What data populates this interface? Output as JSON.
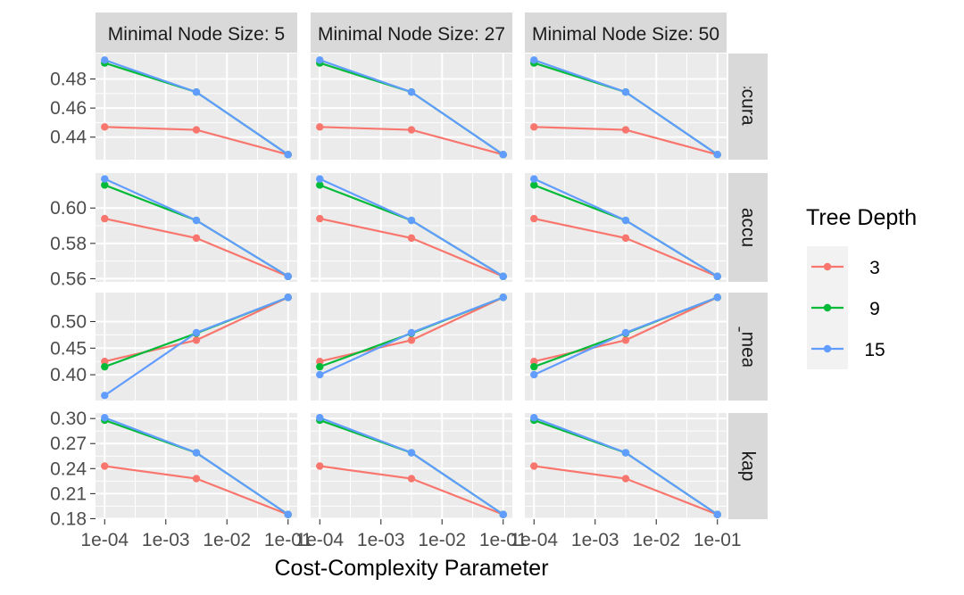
{
  "chart_data": {
    "type": "line",
    "x_scale": "log10",
    "x": [
      0.0001,
      0.00316,
      0.1
    ],
    "xlabel": "Cost-Complexity Parameter",
    "x_ticks": [
      0.0001,
      0.001,
      0.01,
      0.1
    ],
    "x_tick_labels": [
      "1e-04",
      "1e-03",
      "1e-02",
      "1e-01"
    ],
    "col_facets": [
      "Minimal Node Size: 5",
      "Minimal Node Size: 27",
      "Minimal Node Size: 50"
    ],
    "legend": {
      "title": "Tree Depth",
      "position": "right",
      "entries": [
        {
          "label": "3",
          "color": "#F8766D"
        },
        {
          "label": "9",
          "color": "#00BA38"
        },
        {
          "label": "15",
          "color": "#619CFF"
        }
      ]
    },
    "rows": [
      {
        "metric": "accuracy",
        "ylim": [
          0.4245,
          0.4975
        ],
        "y_ticks": [
          0.44,
          0.46,
          0.48
        ],
        "y_tick_labels": [
          "0.44",
          "0.46",
          "0.48"
        ],
        "panels": [
          {
            "series": [
              {
                "depth": "3",
                "values": [
                  0.447,
                  0.445,
                  0.428
                ]
              },
              {
                "depth": "9",
                "values": [
                  0.491,
                  0.471,
                  0.428
                ]
              },
              {
                "depth": "15",
                "values": [
                  0.493,
                  0.471,
                  0.428
                ]
              }
            ]
          },
          {
            "series": [
              {
                "depth": "3",
                "values": [
                  0.447,
                  0.445,
                  0.428
                ]
              },
              {
                "depth": "9",
                "values": [
                  0.491,
                  0.471,
                  0.428
                ]
              },
              {
                "depth": "15",
                "values": [
                  0.493,
                  0.471,
                  0.428
                ]
              }
            ]
          },
          {
            "series": [
              {
                "depth": "3",
                "values": [
                  0.447,
                  0.445,
                  0.428
                ]
              },
              {
                "depth": "9",
                "values": [
                  0.491,
                  0.471,
                  0.428
                ]
              },
              {
                "depth": "15",
                "values": [
                  0.493,
                  0.471,
                  0.428
                ]
              }
            ]
          }
        ]
      },
      {
        "metric": "bal_accuracy",
        "ylim": [
          0.5582,
          0.6198
        ],
        "y_ticks": [
          0.56,
          0.58,
          0.6
        ],
        "y_tick_labels": [
          "0.56",
          "0.58",
          "0.60"
        ],
        "panels": [
          {
            "series": [
              {
                "depth": "3",
                "values": [
                  0.594,
                  0.583,
                  0.5613
                ]
              },
              {
                "depth": "9",
                "values": [
                  0.613,
                  0.593,
                  0.5613
                ]
              },
              {
                "depth": "15",
                "values": [
                  0.6165,
                  0.593,
                  0.5613
                ]
              }
            ]
          },
          {
            "series": [
              {
                "depth": "3",
                "values": [
                  0.594,
                  0.583,
                  0.5613
                ]
              },
              {
                "depth": "9",
                "values": [
                  0.613,
                  0.593,
                  0.5613
                ]
              },
              {
                "depth": "15",
                "values": [
                  0.6165,
                  0.593,
                  0.5613
                ]
              }
            ]
          },
          {
            "series": [
              {
                "depth": "3",
                "values": [
                  0.594,
                  0.583,
                  0.5613
                ]
              },
              {
                "depth": "9",
                "values": [
                  0.613,
                  0.593,
                  0.5613
                ]
              },
              {
                "depth": "15",
                "values": [
                  0.6165,
                  0.593,
                  0.5613
                ]
              }
            ]
          }
        ]
      },
      {
        "metric": "f_meas",
        "ylim": [
          0.3515,
          0.5545
        ],
        "y_ticks": [
          0.4,
          0.45,
          0.5
        ],
        "y_tick_labels": [
          "0.40",
          "0.45",
          "0.50"
        ],
        "panels": [
          {
            "series": [
              {
                "depth": "3",
                "values": [
                  0.425,
                  0.465,
                  0.5455
                ]
              },
              {
                "depth": "9",
                "values": [
                  0.415,
                  0.478,
                  0.5455
                ]
              },
              {
                "depth": "15",
                "values": [
                  0.361,
                  0.479,
                  0.5455
                ]
              }
            ]
          },
          {
            "series": [
              {
                "depth": "3",
                "values": [
                  0.425,
                  0.465,
                  0.5455
                ]
              },
              {
                "depth": "9",
                "values": [
                  0.415,
                  0.478,
                  0.5455
                ]
              },
              {
                "depth": "15",
                "values": [
                  0.4,
                  0.479,
                  0.5455
                ]
              }
            ]
          },
          {
            "series": [
              {
                "depth": "3",
                "values": [
                  0.425,
                  0.465,
                  0.5455
                ]
              },
              {
                "depth": "9",
                "values": [
                  0.415,
                  0.478,
                  0.5455
                ]
              },
              {
                "depth": "15",
                "values": [
                  0.4,
                  0.479,
                  0.5455
                ]
              }
            ]
          }
        ]
      },
      {
        "metric": "kap",
        "ylim": [
          0.1794,
          0.3066
        ],
        "y_ticks": [
          0.18,
          0.21,
          0.24,
          0.27,
          0.3
        ],
        "y_tick_labels": [
          "0.18",
          "0.21",
          "0.24",
          "0.27",
          "0.30"
        ],
        "panels": [
          {
            "series": [
              {
                "depth": "3",
                "values": [
                  0.243,
                  0.228,
                  0.185
                ]
              },
              {
                "depth": "9",
                "values": [
                  0.298,
                  0.259,
                  0.185
                ]
              },
              {
                "depth": "15",
                "values": [
                  0.301,
                  0.259,
                  0.185
                ]
              }
            ]
          },
          {
            "series": [
              {
                "depth": "3",
                "values": [
                  0.243,
                  0.228,
                  0.185
                ]
              },
              {
                "depth": "9",
                "values": [
                  0.298,
                  0.259,
                  0.185
                ]
              },
              {
                "depth": "15",
                "values": [
                  0.301,
                  0.259,
                  0.185
                ]
              }
            ]
          },
          {
            "series": [
              {
                "depth": "3",
                "values": [
                  0.243,
                  0.228,
                  0.185
                ]
              },
              {
                "depth": "9",
                "values": [
                  0.298,
                  0.259,
                  0.185
                ]
              },
              {
                "depth": "15",
                "values": [
                  0.301,
                  0.259,
                  0.185
                ]
              }
            ]
          }
        ]
      }
    ]
  }
}
